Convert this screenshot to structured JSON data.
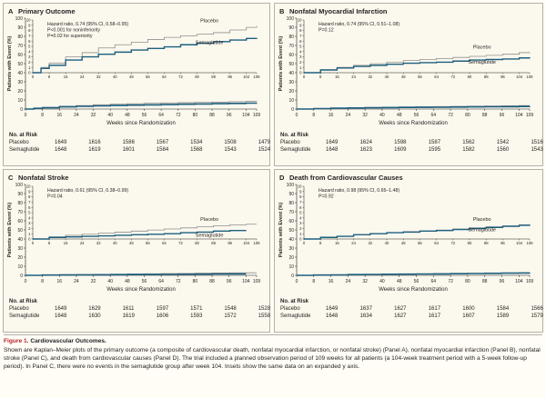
{
  "colors": {
    "placebo": "#8e8e8e",
    "semaglutide": "#1d5f7e",
    "figure_label": "#b5232a",
    "panel_bg": "#fbf8ee"
  },
  "common": {
    "xlabel": "Weeks since Randomization",
    "ylabel": "Patients with Event (%)",
    "risk_title": "No. at Risk",
    "risk_labels": [
      "Placebo",
      "Semaglutide"
    ],
    "series_labels": [
      "Placebo",
      "Semaglutide"
    ]
  },
  "chart_data": [
    {
      "type": "line",
      "letter": "A",
      "title": "Primary Outcome",
      "annotation": [
        "Hazard ratio, 0.74 (95% CI, 0.58–0.95)",
        "P<0.001 for noninferiority",
        "P=0.02 for superiority"
      ],
      "inset_ylim": [
        0,
        10
      ],
      "inset_yticks": [
        0,
        1,
        2,
        3,
        4,
        5,
        6,
        7,
        8,
        9,
        10
      ],
      "outer_ylim": [
        0,
        100
      ],
      "outer_yticks": [
        0,
        10,
        20,
        30,
        40,
        50,
        60,
        70,
        80,
        90,
        100
      ],
      "xlim": [
        0,
        109
      ],
      "xticks": [
        0,
        8,
        16,
        24,
        32,
        40,
        48,
        56,
        64,
        72,
        80,
        88,
        96,
        104,
        109
      ],
      "series": [
        {
          "name": "Placebo",
          "x": [
            0,
            4,
            8,
            16,
            24,
            32,
            40,
            48,
            56,
            64,
            72,
            80,
            88,
            96,
            104,
            109
          ],
          "y": [
            0,
            1.0,
            1.8,
            3.0,
            3.8,
            4.7,
            5.3,
            5.8,
            6.3,
            6.7,
            7.0,
            7.3,
            7.6,
            8.1,
            8.6,
            8.9
          ]
        },
        {
          "name": "Semaglutide",
          "x": [
            0,
            4,
            8,
            16,
            24,
            32,
            40,
            48,
            56,
            64,
            72,
            80,
            88,
            96,
            104,
            109
          ],
          "y": [
            0,
            0.8,
            1.4,
            2.4,
            3.0,
            3.5,
            3.9,
            4.3,
            4.6,
            4.9,
            5.3,
            5.6,
            5.9,
            6.2,
            6.5,
            6.6
          ]
        }
      ],
      "risk_times": [
        0,
        16,
        32,
        48,
        64,
        80,
        96
      ],
      "risk": {
        "Placebo": [
          1649,
          1616,
          1586,
          1567,
          1534,
          1508,
          1479
        ],
        "Semaglutide": [
          1648,
          1619,
          1601,
          1584,
          1568,
          1543,
          1524
        ]
      }
    },
    {
      "type": "line",
      "letter": "B",
      "title": "Nonfatal Myocardial Infarction",
      "annotation": [
        "Hazard ratio, 0.74 (95% CI, 0.51–1.08)",
        "P=0.12"
      ],
      "inset_ylim": [
        0,
        10
      ],
      "inset_yticks": [
        0,
        1,
        2,
        3,
        4,
        5,
        6,
        7,
        8,
        9,
        10
      ],
      "outer_ylim": [
        0,
        100
      ],
      "outer_yticks": [
        0,
        10,
        20,
        30,
        40,
        50,
        60,
        70,
        80,
        90,
        100
      ],
      "xlim": [
        0,
        109
      ],
      "xticks": [
        0,
        8,
        16,
        24,
        32,
        40,
        48,
        56,
        64,
        72,
        80,
        88,
        96,
        104,
        109
      ],
      "series": [
        {
          "name": "Placebo",
          "x": [
            0,
            8,
            16,
            24,
            32,
            40,
            48,
            56,
            64,
            72,
            80,
            88,
            96,
            104,
            109
          ],
          "y": [
            0,
            0.6,
            1.0,
            1.4,
            1.7,
            2.0,
            2.3,
            2.5,
            2.7,
            2.9,
            3.1,
            3.3,
            3.5,
            3.8,
            3.9
          ]
        },
        {
          "name": "Semaglutide",
          "x": [
            0,
            8,
            16,
            24,
            32,
            40,
            48,
            56,
            64,
            72,
            80,
            88,
            96,
            104,
            109
          ],
          "y": [
            0,
            0.5,
            0.9,
            1.2,
            1.4,
            1.6,
            1.8,
            1.9,
            2.0,
            2.2,
            2.4,
            2.5,
            2.6,
            2.8,
            2.9
          ]
        }
      ],
      "risk_times": [
        0,
        16,
        32,
        48,
        64,
        80,
        96
      ],
      "risk": {
        "Placebo": [
          1649,
          1624,
          1598,
          1587,
          1562,
          1542,
          1516
        ],
        "Semaglutide": [
          1648,
          1623,
          1609,
          1595,
          1582,
          1560,
          1543
        ]
      }
    },
    {
      "type": "line",
      "letter": "C",
      "title": "Nonfatal Stroke",
      "annotation": [
        "Hazard ratio, 0.61 (95% CI, 0.38–0.99)",
        "P=0.04"
      ],
      "inset_ylim": [
        0,
        10
      ],
      "inset_yticks": [
        0,
        1,
        2,
        3,
        4,
        5,
        6,
        7,
        8,
        9,
        10
      ],
      "outer_ylim": [
        0,
        100
      ],
      "outer_yticks": [
        0,
        10,
        20,
        30,
        40,
        50,
        60,
        70,
        80,
        90,
        100
      ],
      "xlim": [
        0,
        109
      ],
      "xticks": [
        0,
        8,
        16,
        24,
        32,
        40,
        48,
        56,
        64,
        72,
        80,
        88,
        96,
        104,
        109
      ],
      "series": [
        {
          "name": "Placebo",
          "x": [
            0,
            8,
            16,
            24,
            32,
            40,
            48,
            56,
            64,
            72,
            80,
            88,
            96,
            104,
            109
          ],
          "y": [
            0,
            0.4,
            0.7,
            0.9,
            1.1,
            1.3,
            1.5,
            1.7,
            1.9,
            2.1,
            2.3,
            2.5,
            2.7,
            2.8,
            2.8
          ]
        },
        {
          "name": "Semaglutide",
          "x": [
            0,
            8,
            16,
            24,
            32,
            40,
            48,
            56,
            64,
            72,
            80,
            88,
            96,
            104
          ],
          "y": [
            0,
            0.3,
            0.4,
            0.5,
            0.6,
            0.7,
            0.8,
            0.9,
            1.0,
            1.2,
            1.3,
            1.5,
            1.6,
            1.6
          ]
        }
      ],
      "risk_times": [
        0,
        16,
        32,
        48,
        64,
        80,
        96
      ],
      "risk": {
        "Placebo": [
          1649,
          1629,
          1611,
          1597,
          1571,
          1548,
          1528
        ],
        "Semaglutide": [
          1648,
          1630,
          1619,
          1606,
          1593,
          1572,
          1558
        ]
      }
    },
    {
      "type": "line",
      "letter": "D",
      "title": "Death from Cardiovascular Causes",
      "annotation": [
        "Hazard ratio, 0.98 (95% CI, 0.65–1.48)",
        "P=0.92"
      ],
      "inset_ylim": [
        0,
        10
      ],
      "inset_yticks": [
        0,
        1,
        2,
        3,
        4,
        5,
        6,
        7,
        8,
        9,
        10
      ],
      "outer_ylim": [
        0,
        100
      ],
      "outer_yticks": [
        0,
        10,
        20,
        30,
        40,
        50,
        60,
        70,
        80,
        90,
        100
      ],
      "xlim": [
        0,
        109
      ],
      "xticks": [
        0,
        8,
        16,
        24,
        32,
        40,
        48,
        56,
        64,
        72,
        80,
        88,
        96,
        104,
        109
      ],
      "series": [
        {
          "name": "Placebo",
          "x": [
            0,
            8,
            16,
            24,
            32,
            40,
            48,
            56,
            64,
            72,
            80,
            88,
            96,
            104,
            109
          ],
          "y": [
            0,
            0.3,
            0.5,
            0.8,
            1.0,
            1.2,
            1.4,
            1.5,
            1.7,
            1.9,
            2.1,
            2.3,
            2.5,
            2.7,
            2.8
          ]
        },
        {
          "name": "Semaglutide",
          "x": [
            0,
            8,
            16,
            24,
            32,
            40,
            48,
            56,
            64,
            72,
            80,
            88,
            96,
            104,
            109
          ],
          "y": [
            0,
            0.3,
            0.5,
            0.8,
            1.0,
            1.2,
            1.3,
            1.5,
            1.6,
            1.8,
            2.0,
            2.2,
            2.4,
            2.6,
            2.7
          ]
        }
      ],
      "risk_times": [
        0,
        16,
        32,
        48,
        64,
        80,
        96
      ],
      "risk": {
        "Placebo": [
          1649,
          1637,
          1627,
          1617,
          1600,
          1584,
          1566
        ],
        "Semaglutide": [
          1648,
          1634,
          1627,
          1617,
          1607,
          1589,
          1579
        ]
      }
    }
  ],
  "caption": {
    "label": "Figure 1.",
    "title": "Cardiovascular Outcomes.",
    "body": "Shown are Kaplan–Meier plots of the primary outcome (a composite of cardiovascular death, nonfatal myocardial infarction, or nonfatal stroke) (Panel A), nonfatal myocardial infarction (Panel B), nonfatal stroke (Panel C), and death from cardiovascular causes (Panel D). The trial included a planned observation period of 109 weeks for all patients (a 104-week treatment period with a 5-week follow-up period). In Panel C, there were no events in the semaglutide group after week 104. Insets show the same data on an expanded y axis."
  }
}
